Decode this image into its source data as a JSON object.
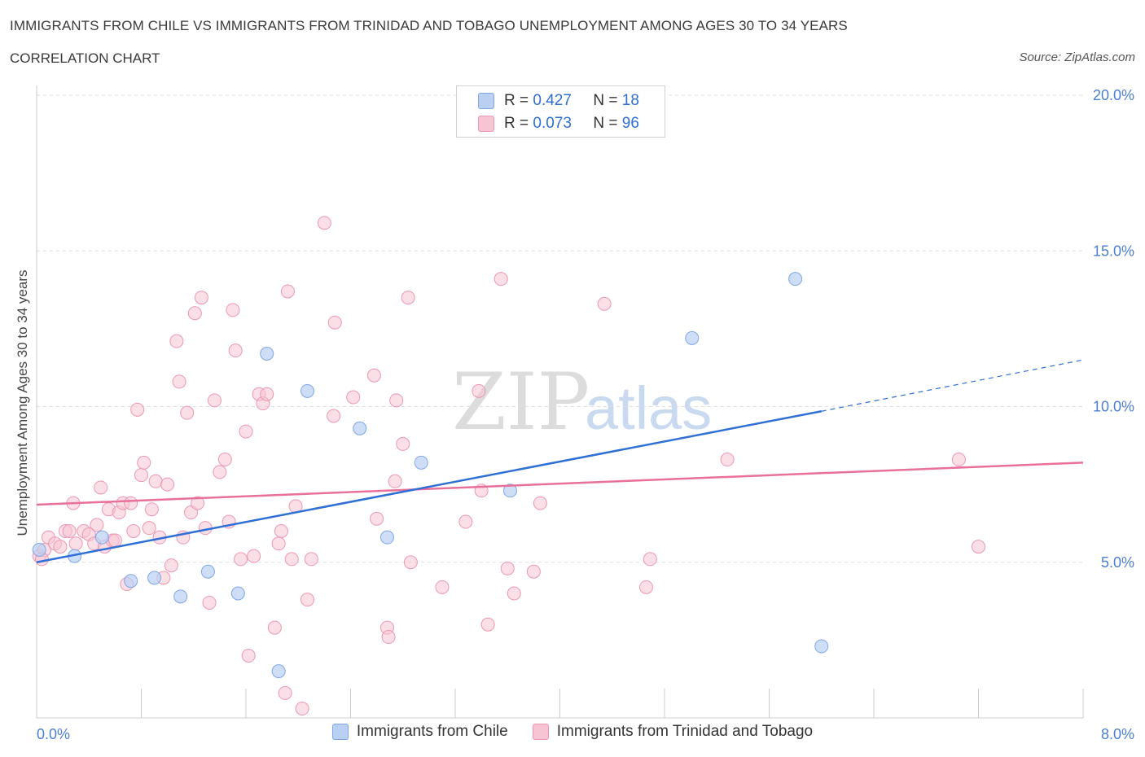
{
  "header": {
    "title": "IMMIGRANTS FROM CHILE VS IMMIGRANTS FROM TRINIDAD AND TOBAGO UNEMPLOYMENT AMONG AGES 30 TO 34 YEARS",
    "subtitle": "CORRELATION CHART",
    "source": "Source: ZipAtlas.com"
  },
  "watermark": {
    "zip": "ZIP",
    "atlas": "atlas"
  },
  "colors": {
    "chile_fill": "#b9d0f3",
    "chile_stroke": "#7ea6e6",
    "chile_line": "#2f6fd6",
    "tt_fill": "#f7c4d4",
    "tt_stroke": "#eb97b3",
    "tt_line": "#e8709a",
    "tick_text": "#4a7fd4",
    "grid": "#dddddd"
  },
  "legend": {
    "r_label": "R =",
    "n_label": "N =",
    "chile": {
      "r": "0.427",
      "n": "18"
    },
    "tt": {
      "r": "0.073",
      "n": "96"
    }
  },
  "chart_data": {
    "type": "scatter",
    "title": "IMMIGRANTS FROM CHILE VS IMMIGRANTS FROM TRINIDAD AND TOBAGO UNEMPLOYMENT AMONG AGES 30 TO 34 YEARS",
    "xlabel": "",
    "ylabel": "Unemployment Among Ages 30 to 34 years",
    "xlim": [
      0,
      8
    ],
    "ylim": [
      0,
      20
    ],
    "x_tick_labels": [
      "0.0%",
      "8.0%"
    ],
    "y_tick_labels": [
      "5.0%",
      "10.0%",
      "15.0%",
      "20.0%"
    ],
    "y_ticks": [
      5,
      10,
      15,
      20
    ],
    "grid": true,
    "legend_position": "top-center",
    "series": [
      {
        "name": "Immigrants from Chile",
        "trend": {
          "x0": 0.0,
          "y0": 5.0,
          "x1": 6.0,
          "y1": 9.85,
          "dashed_to_x": 8.0,
          "dashed_to_y": 11.5
        },
        "points": [
          [
            0.02,
            5.4
          ],
          [
            0.29,
            5.2
          ],
          [
            0.5,
            5.8
          ],
          [
            0.72,
            4.4
          ],
          [
            0.9,
            4.5
          ],
          [
            1.1,
            3.9
          ],
          [
            1.31,
            4.7
          ],
          [
            1.54,
            4.0
          ],
          [
            1.76,
            11.7
          ],
          [
            1.85,
            1.5
          ],
          [
            2.07,
            10.5
          ],
          [
            2.47,
            9.3
          ],
          [
            2.68,
            5.8
          ],
          [
            2.94,
            8.2
          ],
          [
            3.62,
            7.3
          ],
          [
            5.01,
            12.2
          ],
          [
            5.8,
            14.1
          ],
          [
            6.0,
            2.3
          ]
        ]
      },
      {
        "name": "Immigrants from Trinidad and Tobago",
        "trend": {
          "x0": 0.0,
          "y0": 6.85,
          "x1": 8.0,
          "y1": 8.2
        },
        "points": [
          [
            0.02,
            5.2
          ],
          [
            0.06,
            5.4
          ],
          [
            0.09,
            5.8
          ],
          [
            0.14,
            5.6
          ],
          [
            0.18,
            5.5
          ],
          [
            0.22,
            6.0
          ],
          [
            0.25,
            6.0
          ],
          [
            0.28,
            6.9
          ],
          [
            0.3,
            5.6
          ],
          [
            0.36,
            6.0
          ],
          [
            0.4,
            5.9
          ],
          [
            0.44,
            5.6
          ],
          [
            0.46,
            6.2
          ],
          [
            0.49,
            7.4
          ],
          [
            0.52,
            5.5
          ],
          [
            0.55,
            6.7
          ],
          [
            0.58,
            5.7
          ],
          [
            0.6,
            5.7
          ],
          [
            0.63,
            6.6
          ],
          [
            0.66,
            6.9
          ],
          [
            0.69,
            4.3
          ],
          [
            0.72,
            6.9
          ],
          [
            0.74,
            6.0
          ],
          [
            0.77,
            9.9
          ],
          [
            0.8,
            7.8
          ],
          [
            0.82,
            8.2
          ],
          [
            0.86,
            6.1
          ],
          [
            0.88,
            6.7
          ],
          [
            0.91,
            7.6
          ],
          [
            0.94,
            5.8
          ],
          [
            0.97,
            4.5
          ],
          [
            1.0,
            7.5
          ],
          [
            1.03,
            4.9
          ],
          [
            1.07,
            12.1
          ],
          [
            1.09,
            10.8
          ],
          [
            1.12,
            5.8
          ],
          [
            1.15,
            9.8
          ],
          [
            1.18,
            6.6
          ],
          [
            1.21,
            13.0
          ],
          [
            1.23,
            6.9
          ],
          [
            1.26,
            13.5
          ],
          [
            1.29,
            6.1
          ],
          [
            1.32,
            3.7
          ],
          [
            1.36,
            10.2
          ],
          [
            1.4,
            7.9
          ],
          [
            1.44,
            8.3
          ],
          [
            1.47,
            6.3
          ],
          [
            1.5,
            13.1
          ],
          [
            1.52,
            11.8
          ],
          [
            1.56,
            5.1
          ],
          [
            1.6,
            9.2
          ],
          [
            1.62,
            2.0
          ],
          [
            1.66,
            5.2
          ],
          [
            1.7,
            10.4
          ],
          [
            1.73,
            10.1
          ],
          [
            1.76,
            10.4
          ],
          [
            1.82,
            2.9
          ],
          [
            1.85,
            5.6
          ],
          [
            1.87,
            6.0
          ],
          [
            1.92,
            13.7
          ],
          [
            1.95,
            5.1
          ],
          [
            1.98,
            6.8
          ],
          [
            2.03,
            0.3
          ],
          [
            2.07,
            3.8
          ],
          [
            2.1,
            5.1
          ],
          [
            2.2,
            15.9
          ],
          [
            2.27,
            9.7
          ],
          [
            2.28,
            12.7
          ],
          [
            2.42,
            10.3
          ],
          [
            2.58,
            11.0
          ],
          [
            2.6,
            6.4
          ],
          [
            2.68,
            2.9
          ],
          [
            2.69,
            2.6
          ],
          [
            2.74,
            7.6
          ],
          [
            2.75,
            10.2
          ],
          [
            2.8,
            8.8
          ],
          [
            2.84,
            13.5
          ],
          [
            2.86,
            5.0
          ],
          [
            3.1,
            4.2
          ],
          [
            3.28,
            6.3
          ],
          [
            3.38,
            10.5
          ],
          [
            3.4,
            7.3
          ],
          [
            3.45,
            3.0
          ],
          [
            3.55,
            14.1
          ],
          [
            3.6,
            4.8
          ],
          [
            3.65,
            4.0
          ],
          [
            3.8,
            4.7
          ],
          [
            3.85,
            6.9
          ],
          [
            4.34,
            13.3
          ],
          [
            4.66,
            4.2
          ],
          [
            4.69,
            5.1
          ],
          [
            5.28,
            8.3
          ],
          [
            1.9,
            0.8
          ],
          [
            7.05,
            8.3
          ],
          [
            7.2,
            5.5
          ],
          [
            0.04,
            5.1
          ]
        ]
      }
    ]
  },
  "bottom_legend": {
    "chile_label": "Immigrants from Chile",
    "tt_label": "Immigrants from Trinidad and Tobago"
  }
}
